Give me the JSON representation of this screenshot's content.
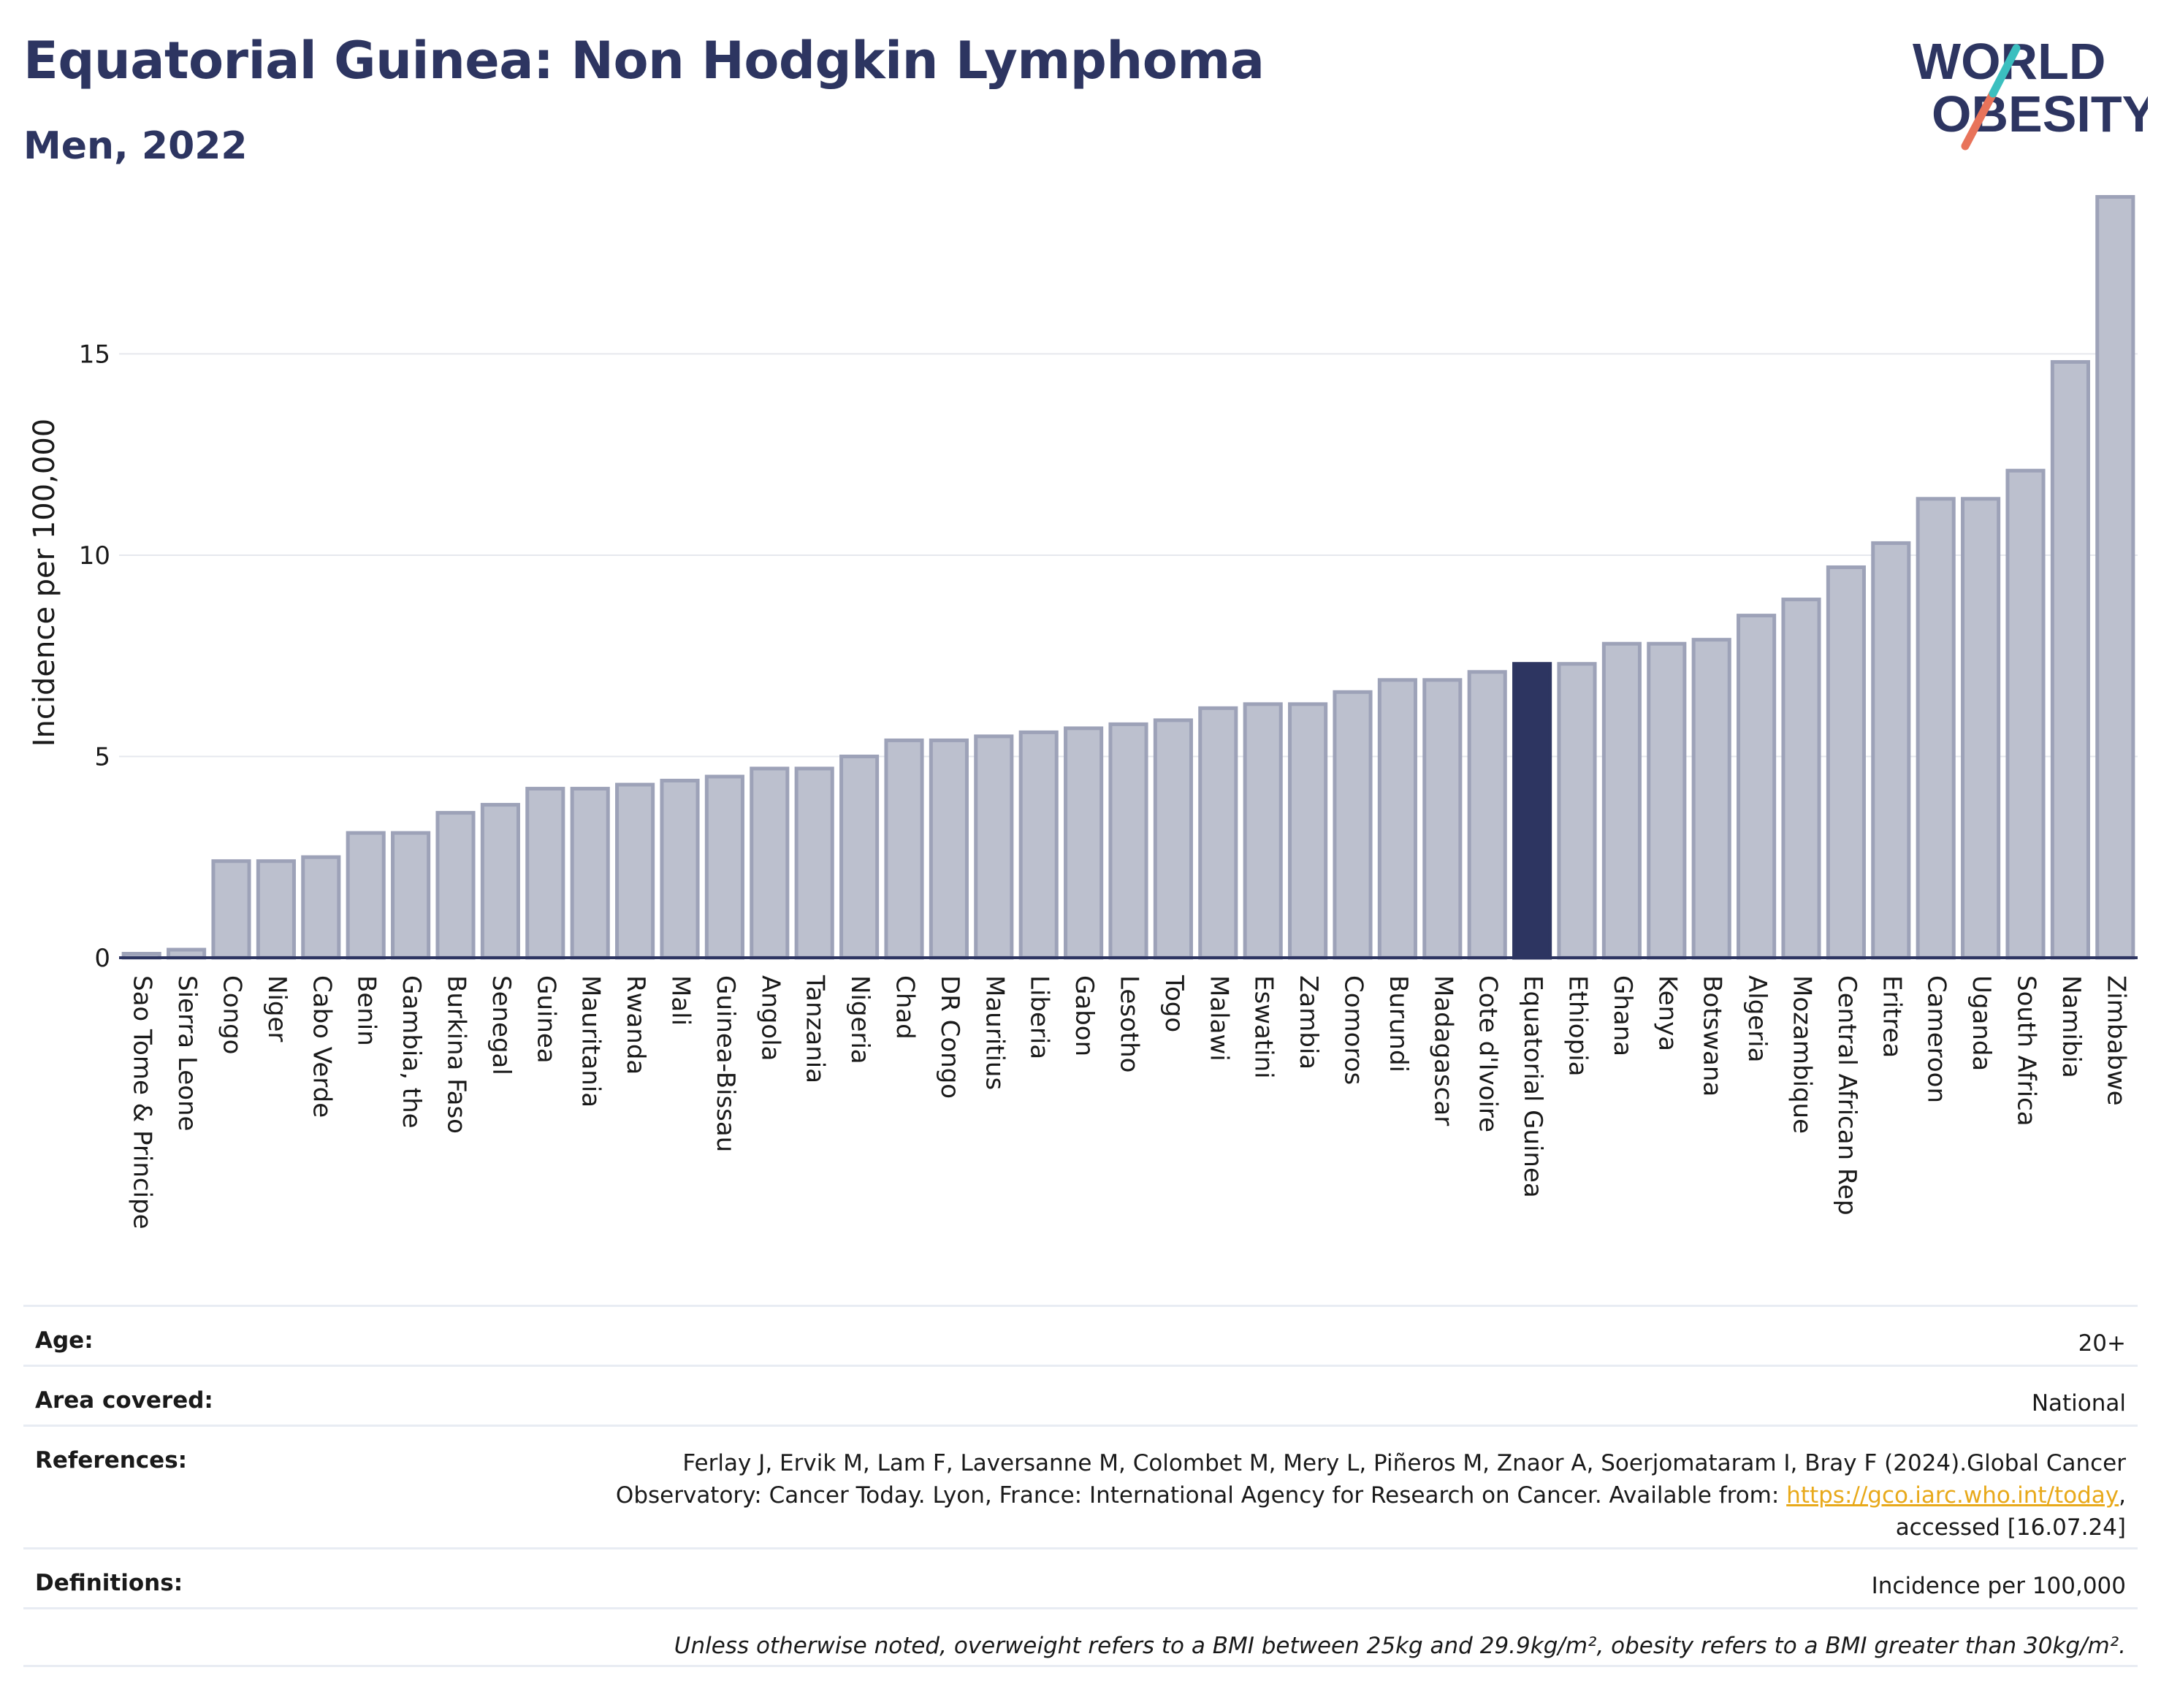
{
  "header": {
    "title": "Equatorial Guinea: Non Hodgkin Lymphoma",
    "subtitle": "Men, 2022"
  },
  "logo": {
    "line1": "WORLD",
    "line2": "OBESITY",
    "colors": {
      "text": "#2d3561",
      "slash_top": "#3bbfbf",
      "slash_bottom": "#e8735a"
    }
  },
  "chart_data": {
    "type": "bar",
    "ylabel": "Incidence per 100,000",
    "ylim": [
      0,
      19
    ],
    "yticks": [
      0,
      5,
      10,
      15
    ],
    "grid": true,
    "highlight": "Equatorial Guinea",
    "colors": {
      "bar": "#bcc0ce",
      "bar_edge": "#9da2b8",
      "highlight": "#2d3561",
      "axis": "#2d3561",
      "grid": "#e6e8ee"
    },
    "categories": [
      "Sao Tome & Principe",
      "Sierra Leone",
      "Congo",
      "Niger",
      "Cabo Verde",
      "Benin",
      "Gambia, the",
      "Burkina Faso",
      "Senegal",
      "Guinea",
      "Mauritania",
      "Rwanda",
      "Mali",
      "Guinea-Bissau",
      "Angola",
      "Tanzania",
      "Nigeria",
      "Chad",
      "DR Congo",
      "Mauritius",
      "Liberia",
      "Gabon",
      "Lesotho",
      "Togo",
      "Malawi",
      "Eswatini",
      "Zambia",
      "Comoros",
      "Burundi",
      "Madagascar",
      "Cote d'Ivoire",
      "Equatorial Guinea",
      "Ethiopia",
      "Ghana",
      "Kenya",
      "Botswana",
      "Algeria",
      "Mozambique",
      "Central African Rep",
      "Eritrea",
      "Cameroon",
      "Uganda",
      "South Africa",
      "Namibia",
      "Zimbabwe"
    ],
    "values": [
      0.1,
      0.2,
      2.4,
      2.4,
      2.5,
      3.1,
      3.1,
      3.6,
      3.8,
      4.2,
      4.2,
      4.3,
      4.4,
      4.5,
      4.7,
      4.7,
      5.0,
      5.4,
      5.4,
      5.5,
      5.6,
      5.7,
      5.8,
      5.9,
      6.2,
      6.3,
      6.3,
      6.6,
      6.9,
      6.9,
      7.1,
      7.3,
      7.3,
      7.8,
      7.8,
      7.9,
      8.5,
      8.9,
      9.7,
      10.3,
      11.4,
      11.4,
      12.1,
      14.8,
      18.9
    ]
  },
  "info": {
    "age_label": "Age:",
    "age_value": "20+",
    "area_label": "Area covered:",
    "area_value": "National",
    "references_label": "References:",
    "references_line1": "Ferlay J, Ervik M, Lam F, Laversanne M, Colombet M, Mery L, Piñeros M, Znaor A, Soerjomataram I, Bray F (2024).Global Cancer",
    "references_line2": "Observatory: Cancer Today. Lyon, France: International Agency for Research on Cancer. Available from: ",
    "references_link": "https://gco.iarc.who.int/today",
    "references_line3": "accessed [16.07.24]",
    "definitions_label": "Definitions:",
    "definitions_value": "Incidence per 100,000",
    "footnote": "Unless otherwise noted, overweight refers to a BMI between 25kg and 29.9kg/m², obesity refers to a BMI greater than 30kg/m²."
  }
}
